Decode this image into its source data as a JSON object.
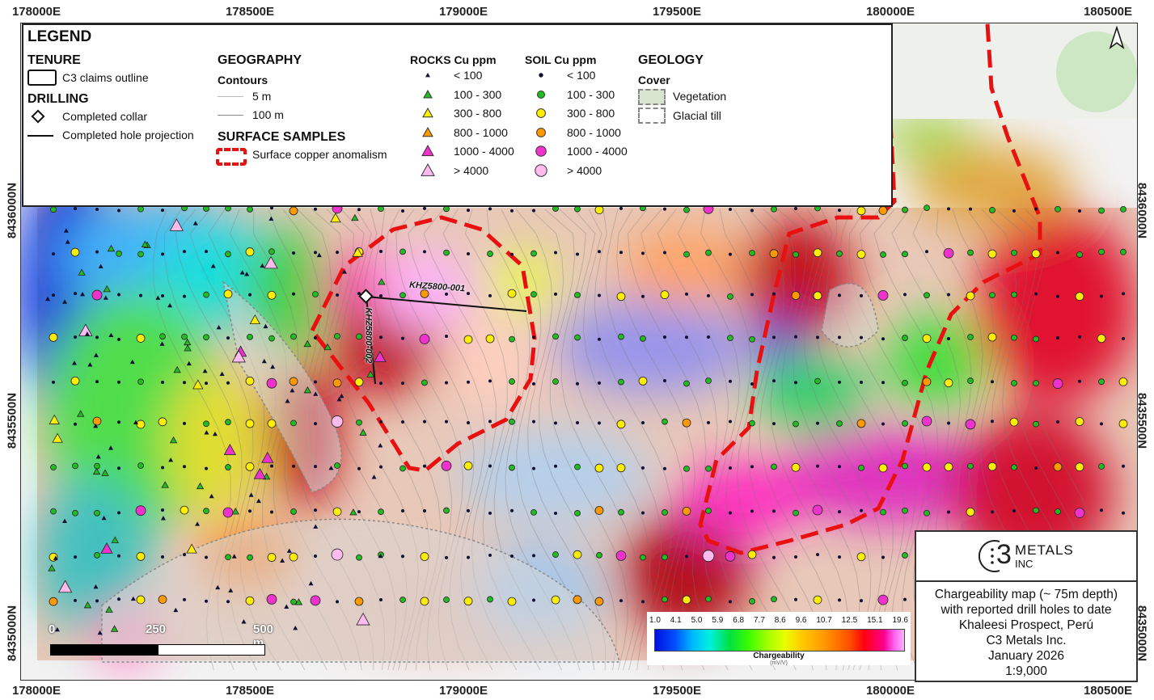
{
  "grid": {
    "eastings": [
      "178000E",
      "178500E",
      "179000E",
      "179500E",
      "180000E",
      "180500E"
    ],
    "northings": [
      "8436000N",
      "8435500N",
      "8435000N"
    ]
  },
  "legend": {
    "title": "LEGEND",
    "tenure": {
      "heading": "TENURE",
      "claims": "C3 claims outline"
    },
    "drilling": {
      "heading": "DRILLING",
      "collar": "Completed collar",
      "projection": "Completed hole projection"
    },
    "geography": {
      "heading": "GEOGRAPHY",
      "contours": "Contours",
      "c5": "5 m",
      "c100": "100 m"
    },
    "surface": {
      "heading": "SURFACE SAMPLES",
      "anomalism": "Surface copper anomalism"
    },
    "rocks": {
      "heading": "ROCKS Cu ppm",
      "classes": [
        "< 100",
        "100 - 300",
        "300 - 800",
        "800 - 1000",
        "1000 - 4000",
        "> 4000"
      ]
    },
    "soil": {
      "heading": "SOIL Cu ppm",
      "classes": [
        "< 100",
        "100 - 300",
        "300 - 800",
        "800 - 1000",
        "1000 - 4000",
        "> 4000"
      ]
    },
    "geology": {
      "heading": "GEOLOGY",
      "cover": "Cover",
      "vegetation": "Vegetation",
      "till": "Glacial till"
    }
  },
  "class_colors": [
    "#111133",
    "#22bb22",
    "#ffee00",
    "#ff9900",
    "#ee33cc",
    "#ffbbee"
  ],
  "drill_holes": [
    "KHZ5800-001",
    "KHZ5800-002"
  ],
  "colorbar": {
    "ticks": [
      "1.0",
      "4.1",
      "5.0",
      "5.9",
      "6.8",
      "7.7",
      "8.6",
      "9.6",
      "10.7",
      "12.5",
      "15.1",
      "19.6"
    ],
    "title": "Chargeability",
    "unit": "(mV/V)"
  },
  "scalebar": {
    "labels": [
      "0",
      "250",
      "500 m"
    ]
  },
  "titlebox": {
    "logo_main": "METALS",
    "logo_sub": "INC",
    "logo_mark": "3",
    "lines": [
      "Chargeability map (~ 75m depth)",
      "with reported drill holes to date",
      "Khaleesi Prospect, Perú",
      "C3 Metals Inc.",
      "January 2026",
      "1:9,000"
    ]
  },
  "north_arrow": "N"
}
